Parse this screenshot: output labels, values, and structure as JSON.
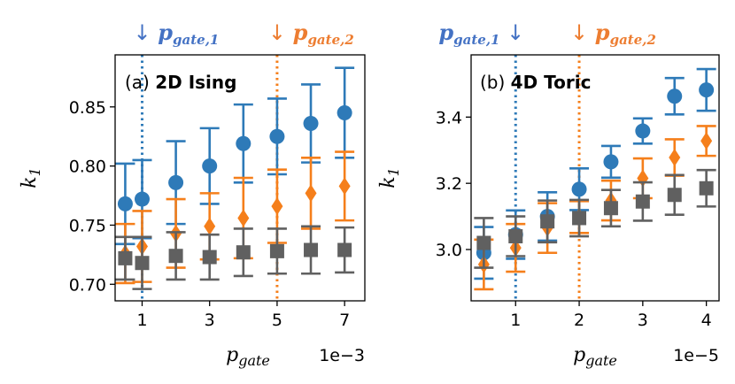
{
  "colors": {
    "blue": "#2e7ab8",
    "orange": "#f57f1b",
    "gray": "#606060",
    "label_blue": "#4472c4",
    "label_orange": "#ed7d31"
  },
  "chart_data": [
    {
      "type": "scatter",
      "panel_letter": "(a)",
      "title": "2D Ising",
      "xlabel": "p",
      "xlabel_sub": "gate",
      "ylabel": "k",
      "ylabel_sub": "1",
      "x_multiplier": "1e−3",
      "xlim": [
        0.2,
        7.6
      ],
      "ylim": [
        0.686,
        0.894
      ],
      "xticks": [
        1,
        3,
        5,
        7
      ],
      "xtick_labels": [
        "1",
        "3",
        "5",
        "7"
      ],
      "yticks": [
        0.7,
        0.75,
        0.8,
        0.85
      ],
      "ytick_labels": [
        "0.70",
        "0.75",
        "0.80",
        "0.85"
      ],
      "gate_lines": [
        {
          "x": 1,
          "arrow": "↓",
          "label": "p",
          "sub": "gate,1",
          "color_key": "blue",
          "label_color_key": "label_blue"
        },
        {
          "x": 5,
          "arrow": "↓",
          "label": "p",
          "sub": "gate,2",
          "color_key": "orange",
          "label_color_key": "label_orange"
        }
      ],
      "series": [
        {
          "marker": "circle",
          "color_key": "blue",
          "x": [
            0.5,
            1,
            2,
            3,
            4,
            5,
            6,
            7
          ],
          "y": [
            0.768,
            0.772,
            0.786,
            0.8,
            0.819,
            0.825,
            0.836,
            0.845
          ],
          "err": [
            0.034,
            0.033,
            0.035,
            0.032,
            0.033,
            0.032,
            0.033,
            0.038
          ]
        },
        {
          "marker": "diamond",
          "color_key": "orange",
          "x": [
            0.5,
            1,
            2,
            3,
            4,
            5,
            6,
            7
          ],
          "y": [
            0.726,
            0.732,
            0.743,
            0.749,
            0.756,
            0.766,
            0.777,
            0.783
          ],
          "err": [
            0.025,
            0.03,
            0.029,
            0.028,
            0.034,
            0.031,
            0.03,
            0.029
          ]
        },
        {
          "marker": "square",
          "color_key": "gray",
          "x": [
            0.5,
            1,
            2,
            3,
            4,
            5,
            6,
            7
          ],
          "y": [
            0.722,
            0.718,
            0.724,
            0.723,
            0.727,
            0.728,
            0.729,
            0.729
          ],
          "err": [
            0.018,
            0.022,
            0.02,
            0.019,
            0.02,
            0.019,
            0.02,
            0.019
          ]
        }
      ]
    },
    {
      "type": "scatter",
      "panel_letter": "(b)",
      "title": "4D Toric",
      "xlabel": "p",
      "xlabel_sub": "gate",
      "ylabel": "k",
      "ylabel_sub": "1",
      "x_multiplier": "1e−5",
      "xlim": [
        0.3,
        4.2
      ],
      "ylim": [
        2.845,
        3.588
      ],
      "xticks": [
        1,
        2,
        3,
        4
      ],
      "xtick_labels": [
        "1",
        "2",
        "3",
        "4"
      ],
      "yticks": [
        3.0,
        3.2,
        3.4
      ],
      "ytick_labels": [
        "3.0",
        "3.2",
        "3.4"
      ],
      "gate_lines": [
        {
          "x": 1,
          "arrow": "↓",
          "label": "p",
          "sub": "gate,1",
          "color_key": "blue",
          "label_color_key": "label_blue",
          "arrow_after": true
        },
        {
          "x": 2,
          "arrow": "↓",
          "label": "p",
          "sub": "gate,2",
          "color_key": "orange",
          "label_color_key": "label_orange"
        }
      ],
      "series": [
        {
          "marker": "circle",
          "color_key": "blue",
          "x": [
            0.5,
            1,
            1.5,
            2,
            2.5,
            3,
            3.5,
            4
          ],
          "y": [
            2.99,
            3.045,
            3.1,
            3.182,
            3.265,
            3.358,
            3.463,
            3.482
          ],
          "err": [
            0.078,
            0.073,
            0.073,
            0.063,
            0.048,
            0.038,
            0.055,
            0.063
          ]
        },
        {
          "marker": "diamond",
          "color_key": "orange",
          "x": [
            0.5,
            1,
            1.5,
            2,
            2.5,
            3,
            3.5,
            4
          ],
          "y": [
            2.955,
            3.005,
            3.065,
            3.098,
            3.148,
            3.215,
            3.278,
            3.328
          ],
          "err": [
            0.075,
            0.072,
            0.075,
            0.048,
            0.06,
            0.06,
            0.055,
            0.045
          ]
        },
        {
          "marker": "square",
          "color_key": "gray",
          "x": [
            0.5,
            1,
            1.5,
            2,
            2.5,
            3,
            3.5,
            4
          ],
          "y": [
            3.02,
            3.04,
            3.085,
            3.095,
            3.125,
            3.145,
            3.165,
            3.185
          ],
          "err": [
            0.075,
            0.06,
            0.063,
            0.055,
            0.055,
            0.058,
            0.06,
            0.055
          ]
        }
      ]
    }
  ]
}
